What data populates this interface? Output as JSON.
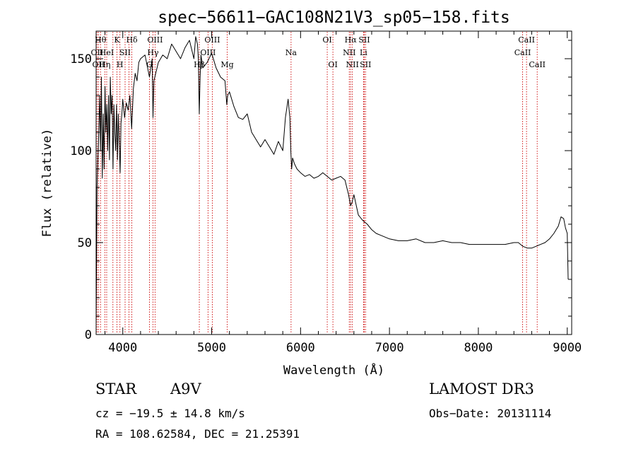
{
  "chart_data": {
    "type": "line",
    "title": "spec−56611−GAC108N21V3_sp05−158.fits",
    "xlabel": "Wavelength (Å)",
    "ylabel": "Flux (relative)",
    "xlim": [
      3700,
      9050
    ],
    "ylim": [
      0,
      165
    ],
    "xticks": [
      4000,
      5000,
      6000,
      7000,
      8000,
      9000
    ],
    "xtick_labels": [
      "4000",
      "5000",
      "6000",
      "7000",
      "8000",
      "9000"
    ],
    "yticks": [
      0,
      50,
      100,
      150
    ],
    "ytick_labels": [
      "0",
      "50",
      "100",
      "150"
    ],
    "series": [
      {
        "name": "flux",
        "x": [
          3700,
          3710,
          3720,
          3730,
          3740,
          3750,
          3760,
          3770,
          3780,
          3790,
          3800,
          3810,
          3820,
          3830,
          3840,
          3850,
          3860,
          3870,
          3880,
          3890,
          3900,
          3910,
          3920,
          3930,
          3940,
          3950,
          3960,
          3970,
          3980,
          3990,
          4000,
          4020,
          4040,
          4060,
          4080,
          4100,
          4120,
          4140,
          4160,
          4180,
          4200,
          4250,
          4300,
          4330,
          4340,
          4350,
          4400,
          4450,
          4500,
          4550,
          4600,
          4650,
          4700,
          4750,
          4800,
          4820,
          4840,
          4850,
          4861,
          4870,
          4880,
          4900,
          4950,
          5000,
          5050,
          5100,
          5150,
          5170,
          5180,
          5200,
          5250,
          5300,
          5350,
          5400,
          5450,
          5500,
          5550,
          5600,
          5650,
          5700,
          5750,
          5800,
          5830,
          5860,
          5880,
          5890,
          5900,
          5910,
          5930,
          5960,
          6000,
          6050,
          6100,
          6150,
          6200,
          6250,
          6300,
          6350,
          6400,
          6450,
          6500,
          6520,
          6540,
          6563,
          6580,
          6600,
          6650,
          6700,
          6750,
          6800,
          6850,
          6900,
          6950,
          7000,
          7100,
          7200,
          7300,
          7400,
          7500,
          7600,
          7700,
          7800,
          7900,
          8000,
          8100,
          8200,
          8300,
          8400,
          8450,
          8500,
          8550,
          8600,
          8650,
          8700,
          8750,
          8800,
          8850,
          8900,
          8930,
          8960,
          8980,
          9000,
          9010
        ],
        "y": [
          5,
          80,
          95,
          110,
          130,
          100,
          140,
          85,
          120,
          90,
          135,
          110,
          125,
          100,
          130,
          95,
          140,
          120,
          130,
          90,
          125,
          110,
          100,
          125,
          95,
          120,
          105,
          88,
          115,
          120,
          128,
          118,
          126,
          122,
          130,
          112,
          134,
          142,
          138,
          148,
          150,
          152,
          140,
          150,
          118,
          138,
          148,
          152,
          150,
          158,
          154,
          150,
          156,
          160,
          150,
          162,
          158,
          150,
          120,
          140,
          152,
          145,
          148,
          153,
          145,
          140,
          138,
          125,
          130,
          132,
          124,
          118,
          117,
          120,
          110,
          106,
          102,
          106,
          102,
          98,
          105,
          100,
          118,
          128,
          118,
          100,
          90,
          96,
          93,
          90,
          88,
          86,
          87,
          85,
          86,
          88,
          86,
          84,
          85,
          86,
          84,
          80,
          76,
          70,
          72,
          76,
          65,
          62,
          60,
          57,
          55,
          54,
          53,
          52,
          51,
          51,
          52,
          50,
          50,
          51,
          50,
          50,
          49,
          49,
          49,
          49,
          49,
          50,
          50,
          48,
          47,
          47,
          48,
          49,
          50,
          52,
          55,
          59,
          64,
          63,
          58,
          55,
          30
        ]
      }
    ],
    "lines": [
      {
        "x": 3711,
        "label": "OII",
        "row": 2
      },
      {
        "x": 3727,
        "label": "OII",
        "row": 3
      },
      {
        "x": 3750,
        "label": "Hθ",
        "row": 1
      },
      {
        "x": 3798,
        "label": "Hη",
        "row": 3
      },
      {
        "x": 3819,
        "label": "HeI",
        "row": 2
      },
      {
        "x": 3889,
        "label": "",
        "row": 0
      },
      {
        "x": 3934,
        "label": "K",
        "row": 1
      },
      {
        "x": 3968,
        "label": "H",
        "row": 3
      },
      {
        "x": 4026,
        "label": "SII",
        "row": 2
      },
      {
        "x": 4102,
        "label": "Hδ",
        "row": 1
      },
      {
        "x": 4069,
        "label": "",
        "row": 0
      },
      {
        "x": 4300,
        "label": "G",
        "row": 3
      },
      {
        "x": 4340,
        "label": "Hγ",
        "row": 2
      },
      {
        "x": 4363,
        "label": "OIII",
        "row": 1
      },
      {
        "x": 4861,
        "label": "Hβ",
        "row": 3
      },
      {
        "x": 4959,
        "label": "OIII",
        "row": 2
      },
      {
        "x": 5007,
        "label": "OIII",
        "row": 1
      },
      {
        "x": 5175,
        "label": "Mg",
        "row": 3
      },
      {
        "x": 5893,
        "label": "Na",
        "row": 2
      },
      {
        "x": 6300,
        "label": "OI",
        "row": 1
      },
      {
        "x": 6364,
        "label": "OI",
        "row": 3
      },
      {
        "x": 6548,
        "label": "NII",
        "row": 2
      },
      {
        "x": 6563,
        "label": "Hα",
        "row": 1
      },
      {
        "x": 6583,
        "label": "NII",
        "row": 3
      },
      {
        "x": 6708,
        "label": "Li",
        "row": 2
      },
      {
        "x": 6717,
        "label": "SII",
        "row": 1
      },
      {
        "x": 6731,
        "label": "SII",
        "row": 3
      },
      {
        "x": 8498,
        "label": "CaII",
        "row": 2
      },
      {
        "x": 8542,
        "label": "CaII",
        "row": 1
      },
      {
        "x": 8662,
        "label": "CaII",
        "row": 3
      }
    ]
  },
  "info": {
    "object_class": "STAR",
    "subclass": "A9V",
    "survey": "LAMOST DR3",
    "cz": "cz = −19.5 ± 14.8 km/s",
    "obs_date": "Obs−Date: 20131114",
    "coords": "RA = 108.62584, DEC =  21.25391"
  },
  "colors": {
    "line_marker": "#cc0000",
    "spectrum": "#000000"
  }
}
